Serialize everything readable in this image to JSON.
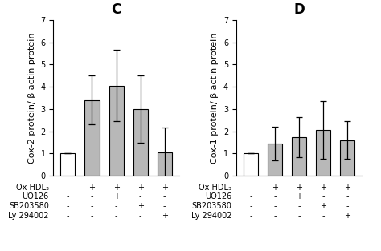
{
  "chart_data": [
    {
      "type": "bar",
      "title": "C",
      "ylabel": "Cox-2 protein/ β actin protein",
      "categories": [
        "-\n-\n-\n-",
        "+\n-\n-\n-",
        "+\n+\n-\n-",
        "+\n-\n+\n-",
        "+\n-\n-\n+"
      ],
      "values": [
        1.0,
        3.4,
        4.05,
        3.0,
        1.05
      ],
      "errors": [
        0.0,
        1.1,
        1.6,
        1.5,
        1.1
      ],
      "colors": [
        "white",
        "#b8b8b8",
        "#b8b8b8",
        "#b8b8b8",
        "#b8b8b8"
      ],
      "ylim": [
        0,
        7
      ],
      "yticks": [
        0,
        1,
        2,
        3,
        4,
        5,
        6,
        7
      ],
      "annotations": [
        "Ox HDL₃",
        "UO126",
        "SB203580",
        "Ly 294002"
      ]
    },
    {
      "type": "bar",
      "title": "D",
      "ylabel": "Cox-1 protein/ β actin protein",
      "categories": [
        "-\n-\n-\n-",
        "+\n-\n-\n-",
        "+\n+\n-\n-",
        "+\n-\n+\n-",
        "+\n-\n-\n+"
      ],
      "values": [
        1.0,
        1.45,
        1.75,
        2.05,
        1.6
      ],
      "errors": [
        0.0,
        0.75,
        0.9,
        1.3,
        0.85
      ],
      "colors": [
        "white",
        "#b8b8b8",
        "#b8b8b8",
        "#b8b8b8",
        "#b8b8b8"
      ],
      "ylim": [
        0,
        7
      ],
      "yticks": [
        0,
        1,
        2,
        3,
        4,
        5,
        6,
        7
      ],
      "annotations": [
        "Ox HDL₃",
        "UO126",
        "SB203580",
        "Ly 294002"
      ]
    }
  ]
}
